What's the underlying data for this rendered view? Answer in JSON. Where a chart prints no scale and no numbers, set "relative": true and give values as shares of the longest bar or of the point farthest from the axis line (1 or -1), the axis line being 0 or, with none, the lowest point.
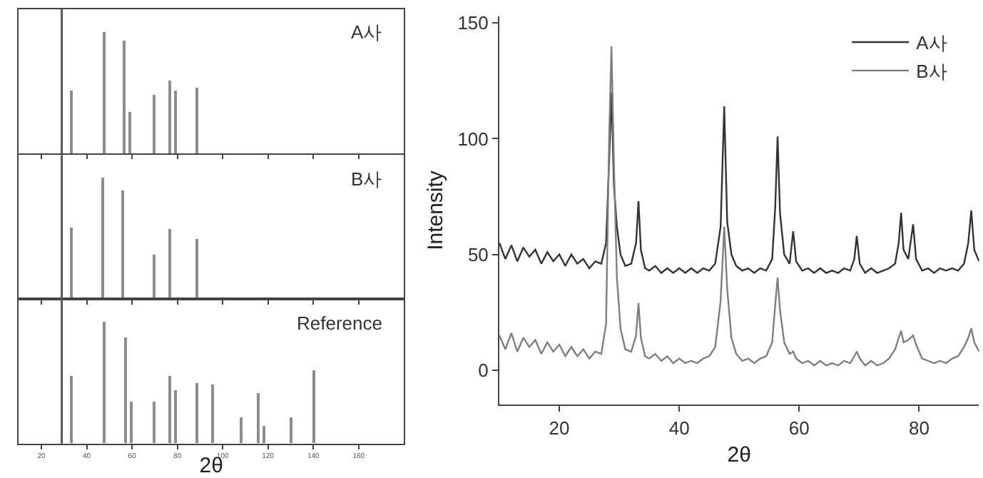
{
  "chart_data": [
    {
      "type": "bar",
      "relative": true,
      "x": [
        33.4,
        47.6,
        56.4,
        59.4,
        69.6,
        76.9,
        79.4,
        88.7
      ],
      "values": [
        0.52,
        1.0,
        0.93,
        0.34,
        0.48,
        0.6,
        0.52,
        0.54
      ],
      "color": "#8c8c8c",
      "xlim": [
        10,
        180
      ],
      "xticks": [
        20,
        40,
        60,
        80,
        100,
        120,
        140,
        160
      ],
      "tick_labels": false,
      "grid": false,
      "legend": false,
      "annotations": [
        "A사"
      ],
      "ref_lines": [
        {
          "axis": "x",
          "value": 29,
          "color": "#555555"
        }
      ]
    },
    {
      "type": "bar",
      "relative": true,
      "x": [
        33.4,
        47.4,
        56.2,
        69.6,
        77.1,
        88.7
      ],
      "values": [
        0.59,
        1.0,
        0.89,
        0.37,
        0.58,
        0.49
      ],
      "color": "#8c8c8c",
      "xlim": [
        10,
        180
      ],
      "xticks": [
        20,
        40,
        60,
        80,
        100,
        120,
        140,
        160
      ],
      "tick_labels": false,
      "grid": false,
      "legend": false,
      "annotations": [
        "B사"
      ],
      "ref_lines": [
        {
          "axis": "x",
          "value": 29,
          "color": "#555555"
        }
      ]
    },
    {
      "type": "bar",
      "relative": true,
      "x": [
        33.6,
        48.1,
        57.0,
        59.8,
        69.6,
        77.1,
        79.4,
        89.0,
        95.9,
        108.5,
        115.9,
        118.4,
        130.3,
        140.3
      ],
      "values": [
        0.56,
        1.0,
        0.87,
        0.34,
        0.35,
        0.56,
        0.44,
        0.5,
        0.48,
        0.21,
        0.42,
        0.15,
        0.21,
        0.6
      ],
      "color": "#8c8c8c",
      "xlim": [
        10,
        180
      ],
      "xticks": [
        20,
        40,
        60,
        80,
        100,
        120,
        140,
        160
      ],
      "tick_labels": "x",
      "xlabel": "2θ",
      "grid": false,
      "legend": false,
      "annotations": [
        "Reference"
      ],
      "ref_lines": [
        {
          "axis": "x",
          "value": 29,
          "color": "#555555"
        }
      ]
    },
    {
      "type": "line",
      "xlabel": "2θ",
      "ylabel": "Intensity",
      "xlim": [
        10,
        90
      ],
      "ylim": [
        -15,
        153
      ],
      "xticks": [
        20,
        40,
        60,
        80
      ],
      "yticks": [
        0,
        50,
        100,
        150
      ],
      "grid": false,
      "legend": "top right",
      "marker": "none",
      "line_style": "solid",
      "series": [
        {
          "name": "A사",
          "color": "#333333",
          "x": [
            10,
            11,
            12,
            13,
            14,
            15,
            16,
            17,
            18,
            19,
            20,
            21,
            22,
            23,
            24,
            25,
            26,
            27,
            27.8,
            28.3,
            28.7,
            29.1,
            29.6,
            30.2,
            31,
            32,
            32.8,
            33.2,
            33.6,
            34.3,
            35,
            36,
            37,
            38,
            39,
            40,
            41,
            42,
            43,
            44,
            45,
            46,
            46.9,
            47.5,
            48,
            48.7,
            49.5,
            50.5,
            51.5,
            52.5,
            53.5,
            54.5,
            55.5,
            56,
            56.4,
            56.8,
            57.5,
            58.4,
            59,
            59.5,
            60.5,
            61.5,
            62.5,
            63.5,
            64.5,
            65.5,
            66.5,
            67.5,
            68.5,
            69.2,
            69.6,
            70.1,
            71,
            72,
            73,
            74,
            75,
            76,
            76.6,
            77,
            77.4,
            78.2,
            79,
            79.5,
            80.5,
            81.5,
            82.5,
            83.5,
            84.5,
            85.5,
            86.5,
            87.5,
            88.2,
            88.7,
            89.2,
            90
          ],
          "values": [
            55,
            48,
            54,
            47,
            53,
            49,
            52,
            46,
            51,
            47,
            50,
            45,
            50,
            46,
            48,
            44,
            47,
            46,
            55,
            90,
            120,
            80,
            62,
            50,
            45,
            46,
            55,
            73,
            52,
            44,
            43,
            45,
            42,
            44,
            42,
            44,
            42,
            44,
            42,
            44,
            43,
            46,
            62,
            114,
            64,
            50,
            45,
            43,
            44,
            42,
            44,
            43,
            48,
            70,
            101,
            68,
            50,
            46,
            60,
            47,
            43,
            44,
            42,
            44,
            42,
            43,
            42,
            44,
            43,
            48,
            58,
            46,
            42,
            44,
            42,
            43,
            44,
            46,
            55,
            68,
            52,
            48,
            63,
            48,
            43,
            44,
            42,
            44,
            43,
            44,
            43,
            46,
            55,
            69,
            52,
            47
          ]
        },
        {
          "name": "B사",
          "color": "#7f7f7f",
          "x": [
            10,
            11,
            12,
            13,
            14,
            15,
            16,
            17,
            18,
            19,
            20,
            21,
            22,
            23,
            24,
            25,
            26,
            27,
            27.8,
            28.3,
            28.7,
            29.1,
            29.6,
            30.2,
            31,
            32,
            32.8,
            33.2,
            33.6,
            34.3,
            35,
            36,
            37,
            38,
            39,
            40,
            41,
            42,
            43,
            44,
            45,
            46,
            46.9,
            47.5,
            48,
            48.7,
            49.5,
            50.5,
            51.5,
            52.5,
            53.5,
            54.5,
            55.5,
            56,
            56.4,
            56.8,
            57.5,
            58.4,
            59,
            59.5,
            60.5,
            61.5,
            62.5,
            63.5,
            64.5,
            65.5,
            66.5,
            67.5,
            68.5,
            69.2,
            69.6,
            70.1,
            71,
            72,
            73,
            74,
            75,
            76,
            76.6,
            77,
            77.4,
            78.2,
            79,
            79.5,
            80.5,
            81.5,
            82.5,
            83.5,
            84.5,
            85.5,
            86.5,
            87.5,
            88.2,
            88.7,
            89.2,
            90
          ],
          "values": [
            15,
            9,
            16,
            8,
            14,
            10,
            13,
            7,
            12,
            8,
            11,
            6,
            10,
            6,
            9,
            5,
            8,
            7,
            20,
            100,
            140,
            90,
            40,
            18,
            9,
            8,
            15,
            29,
            14,
            6,
            5,
            7,
            4,
            6,
            3,
            5,
            3,
            4,
            3,
            5,
            6,
            10,
            30,
            62,
            35,
            14,
            7,
            4,
            5,
            3,
            5,
            6,
            12,
            28,
            40,
            26,
            12,
            7,
            8,
            5,
            3,
            4,
            2,
            4,
            2,
            3,
            2,
            4,
            3,
            6,
            8,
            5,
            2,
            4,
            2,
            3,
            5,
            9,
            14,
            17,
            12,
            13,
            15,
            11,
            5,
            4,
            3,
            4,
            3,
            5,
            6,
            10,
            14,
            18,
            12,
            8
          ]
        }
      ]
    }
  ]
}
